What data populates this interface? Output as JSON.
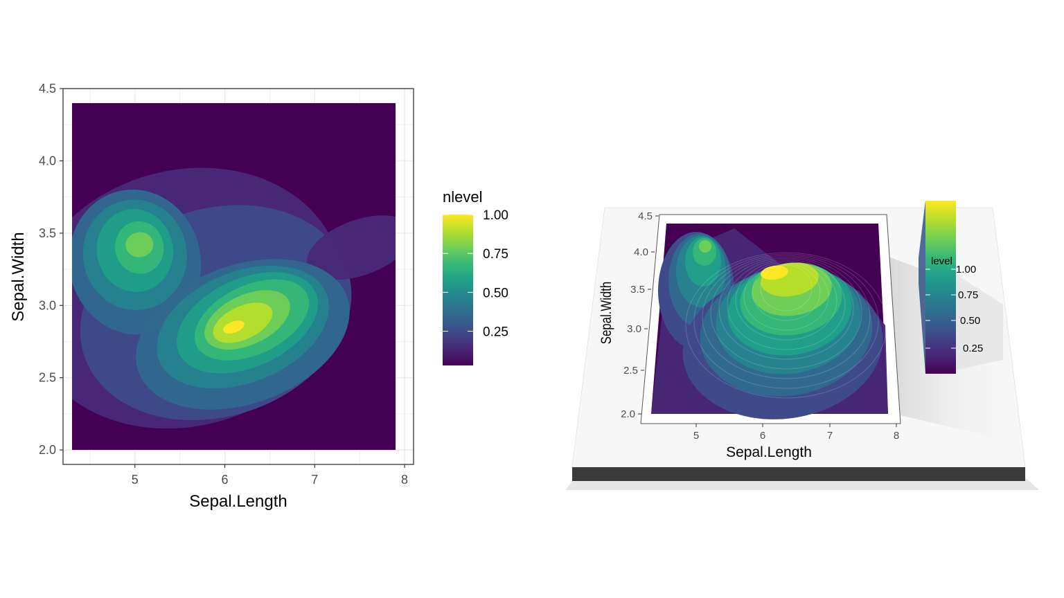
{
  "colors": {
    "viridis": [
      "#440154",
      "#482878",
      "#3e4a89",
      "#31688e",
      "#26828e",
      "#1f9e89",
      "#35b779",
      "#6ece58",
      "#b5de2b",
      "#fde725"
    ],
    "panel_border": "#333333",
    "grid": "#ebebeb",
    "base_side": "#3a3a3a"
  },
  "chart_data": [
    {
      "type": "heatmap",
      "title": "",
      "xlabel": "Sepal.Length",
      "ylabel": "Sepal.Width",
      "xlim": [
        4.2,
        8.1
      ],
      "ylim": [
        1.9,
        4.5
      ],
      "x_ticks": [
        "5",
        "6",
        "7",
        "8"
      ],
      "y_ticks": [
        "2.0",
        "2.5",
        "3.0",
        "3.5",
        "4.0",
        "4.5"
      ],
      "x_tick_values": [
        5,
        6,
        7,
        8
      ],
      "y_tick_values": [
        2.0,
        2.5,
        3.0,
        3.5,
        4.0,
        4.5
      ],
      "density_extent": {
        "x": [
          4.3,
          7.9
        ],
        "y": [
          2.0,
          4.4
        ]
      },
      "density_peaks": [
        {
          "x": 6.1,
          "y": 2.85,
          "level": 1.0
        },
        {
          "x": 5.05,
          "y": 3.42,
          "level": 0.7
        },
        {
          "x": 6.6,
          "y": 3.05,
          "level": 0.85
        }
      ],
      "grid": true,
      "legend": {
        "title": "nlevel",
        "placement": "right",
        "labels": [
          "1.00",
          "0.75",
          "0.50",
          "0.25"
        ],
        "values": [
          1.0,
          0.75,
          0.5,
          0.25
        ]
      }
    },
    {
      "type": "heatmap",
      "title": "",
      "render": "3d-perspective",
      "xlabel": "Sepal.Length",
      "ylabel": "Sepal.Width",
      "x_ticks": [
        "5",
        "6",
        "7",
        "8"
      ],
      "y_ticks": [
        "2.0",
        "2.5",
        "3.0",
        "3.5",
        "4.0",
        "4.5"
      ],
      "legend": {
        "title_visible_fragment": "level",
        "placement": "right",
        "labels": [
          "1.00",
          "0.75",
          "0.50",
          "0.25"
        ]
      }
    }
  ]
}
